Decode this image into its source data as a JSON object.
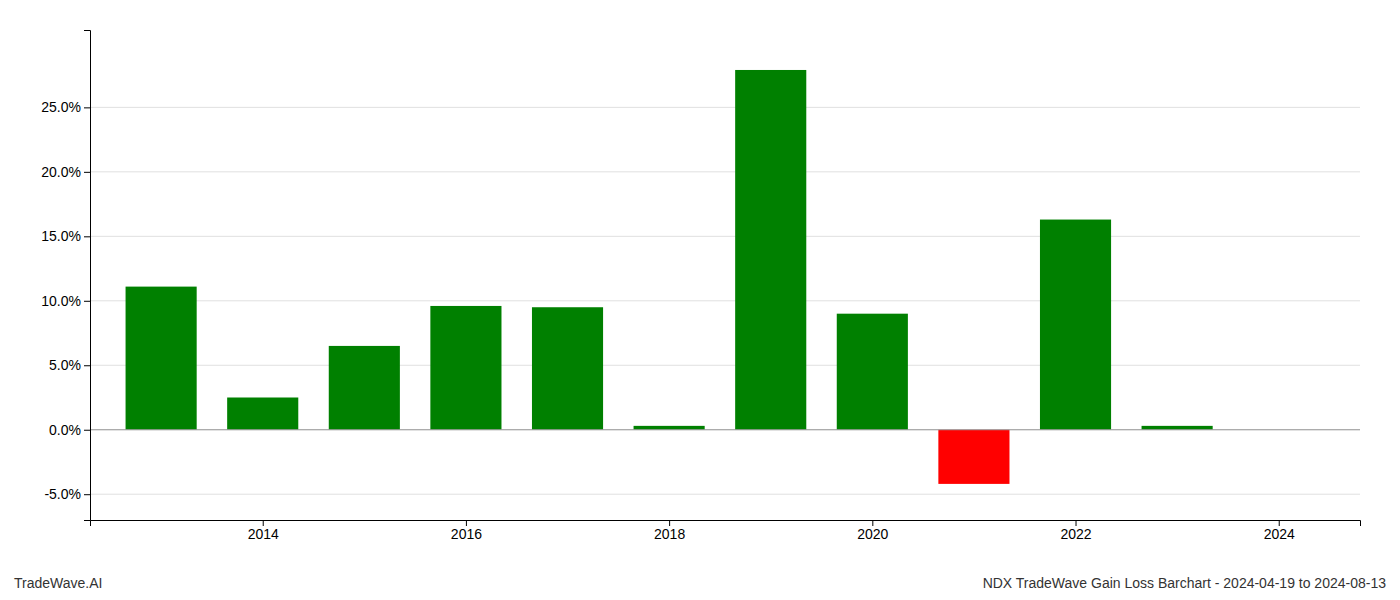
{
  "chart_data": {
    "type": "bar",
    "x": [
      2013,
      2014,
      2015,
      2016,
      2017,
      2018,
      2019,
      2020,
      2021,
      2022,
      2023,
      2024
    ],
    "values": [
      0.111,
      0.025,
      0.065,
      0.096,
      0.095,
      0.003,
      0.279,
      0.09,
      -0.042,
      0.163,
      0.003,
      0.0
    ],
    "colors": [
      "#008000",
      "#008000",
      "#008000",
      "#008000",
      "#008000",
      "#008000",
      "#008000",
      "#008000",
      "#ff0000",
      "#008000",
      "#008000",
      "#008000"
    ],
    "xlim": [
      2012.3,
      2024.8
    ],
    "ylim": [
      -0.07,
      0.31
    ],
    "xticks": [
      2014,
      2016,
      2018,
      2020,
      2022,
      2024
    ],
    "yticks": [
      {
        "value": -0.05,
        "label": "-5.0%"
      },
      {
        "value": 0.0,
        "label": "0.0%"
      },
      {
        "value": 0.05,
        "label": "5.0%"
      },
      {
        "value": 0.1,
        "label": "10.0%"
      },
      {
        "value": 0.15,
        "label": "15.0%"
      },
      {
        "value": 0.2,
        "label": "20.0%"
      },
      {
        "value": 0.25,
        "label": "25.0%"
      }
    ],
    "grid": true,
    "annotations": [
      "TradeWave.AI",
      "NDX TradeWave Gain Loss Barchart - 2024-04-19 to 2024-08-13"
    ]
  }
}
